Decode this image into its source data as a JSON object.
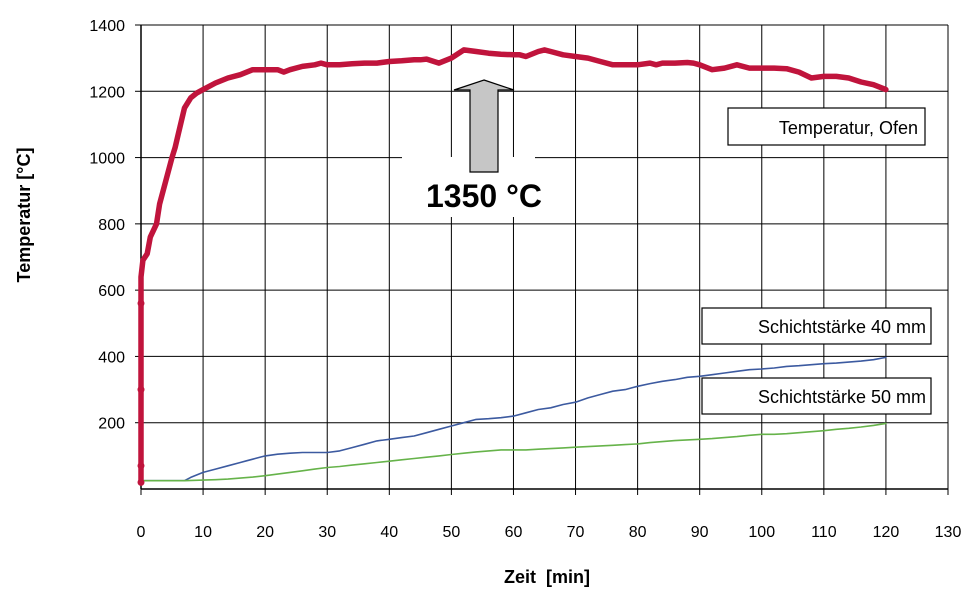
{
  "chart_data": {
    "type": "line",
    "title": "",
    "xlabel": "Zeit  [min]",
    "ylabel": "Temperatur [°C]",
    "xlim": [
      0,
      130
    ],
    "ylim": [
      0,
      1400
    ],
    "xticks": [
      0,
      10,
      20,
      30,
      40,
      50,
      60,
      70,
      80,
      90,
      100,
      110,
      120,
      130
    ],
    "yticks": [
      200,
      400,
      600,
      800,
      1000,
      1200,
      1400
    ],
    "grid": true,
    "series": [
      {
        "name": "Temperatur, Ofen",
        "color": "#c0143c",
        "x": [
          0,
          0,
          0,
          0,
          0,
          0.3,
          1,
          1.5,
          2.5,
          3,
          4,
          5,
          5.5,
          6,
          7,
          8,
          9,
          10,
          12,
          14,
          16,
          18,
          20,
          22,
          23,
          24,
          26,
          28,
          29,
          30,
          32,
          34,
          36,
          38,
          40,
          42,
          44,
          45,
          46,
          48,
          50,
          52,
          54,
          56,
          58,
          60,
          61,
          62,
          64,
          65,
          66,
          68,
          70,
          72,
          74,
          76,
          78,
          80,
          82,
          83,
          84,
          86,
          88,
          89,
          90,
          92,
          94,
          96,
          98,
          100,
          102,
          104,
          106,
          108,
          110,
          112,
          114,
          116,
          118,
          120
        ],
        "y": [
          20,
          70,
          300,
          560,
          640,
          690,
          710,
          760,
          800,
          860,
          930,
          1000,
          1030,
          1070,
          1150,
          1180,
          1195,
          1205,
          1225,
          1240,
          1250,
          1265,
          1265,
          1265,
          1258,
          1265,
          1275,
          1280,
          1285,
          1280,
          1280,
          1283,
          1285,
          1285,
          1290,
          1292,
          1295,
          1295,
          1297,
          1285,
          1300,
          1325,
          1320,
          1315,
          1312,
          1310,
          1310,
          1305,
          1320,
          1325,
          1320,
          1310,
          1305,
          1300,
          1290,
          1280,
          1280,
          1280,
          1285,
          1280,
          1285,
          1285,
          1287,
          1285,
          1280,
          1265,
          1270,
          1280,
          1270,
          1270,
          1270,
          1268,
          1258,
          1240,
          1245,
          1245,
          1240,
          1228,
          1220,
          1205
        ]
      },
      {
        "name": "Schichtstärke 40 mm",
        "color": "#3c5aa0",
        "x": [
          0,
          2,
          4,
          7,
          8,
          10,
          12,
          14,
          16,
          17,
          18,
          19,
          20,
          22,
          24,
          26,
          28,
          30,
          32,
          34,
          36,
          38,
          40,
          42,
          44,
          46,
          48,
          50,
          52,
          54,
          56,
          58,
          60,
          62,
          64,
          66,
          68,
          70,
          72,
          74,
          76,
          78,
          80,
          82,
          84,
          86,
          88,
          90,
          92,
          94,
          96,
          98,
          100,
          102,
          104,
          106,
          108,
          110,
          112,
          114,
          116,
          118,
          120
        ],
        "y": [
          25,
          25,
          25,
          25,
          35,
          50,
          60,
          70,
          80,
          85,
          90,
          95,
          100,
          105,
          108,
          110,
          110,
          110,
          115,
          125,
          135,
          145,
          150,
          155,
          160,
          170,
          180,
          190,
          200,
          210,
          212,
          215,
          220,
          230,
          240,
          245,
          255,
          262,
          275,
          285,
          295,
          300,
          310,
          318,
          325,
          330,
          337,
          340,
          345,
          350,
          355,
          360,
          362,
          365,
          370,
          372,
          375,
          378,
          380,
          383,
          386,
          390,
          397
        ]
      },
      {
        "name": "Schichtstärke 50 mm",
        "color": "#66b34a",
        "x": [
          0,
          2,
          4,
          7,
          10,
          12,
          14,
          16,
          18,
          20,
          22,
          24,
          26,
          28,
          30,
          32,
          34,
          36,
          38,
          40,
          42,
          44,
          46,
          48,
          50,
          52,
          54,
          56,
          58,
          60,
          62,
          64,
          66,
          68,
          70,
          72,
          74,
          76,
          78,
          80,
          82,
          84,
          86,
          88,
          90,
          92,
          94,
          96,
          98,
          100,
          102,
          104,
          106,
          108,
          110,
          112,
          114,
          116,
          118,
          120
        ],
        "y": [
          25,
          25,
          25,
          25,
          27,
          28,
          30,
          33,
          36,
          40,
          45,
          50,
          55,
          60,
          65,
          68,
          72,
          76,
          80,
          84,
          88,
          92,
          96,
          100,
          104,
          108,
          112,
          115,
          118,
          118,
          118,
          120,
          122,
          124,
          126,
          128,
          130,
          132,
          134,
          136,
          140,
          143,
          146,
          148,
          150,
          152,
          155,
          158,
          162,
          165,
          165,
          167,
          170,
          173,
          176,
          180,
          183,
          187,
          192,
          198
        ]
      }
    ],
    "markers": {
      "series": "Temperatur, Ofen",
      "x": [
        0,
        0,
        0,
        0
      ],
      "y": [
        20,
        70,
        300,
        560
      ]
    },
    "annotations": [
      {
        "text": "Temperatur, Ofen",
        "boxed": true
      },
      {
        "text": "Schichtstärke 40 mm",
        "boxed": true
      },
      {
        "text": "Schichtstärke 50 mm",
        "boxed": true
      },
      {
        "text": "1350 °C",
        "boxed": false,
        "arrow": "up"
      }
    ]
  }
}
